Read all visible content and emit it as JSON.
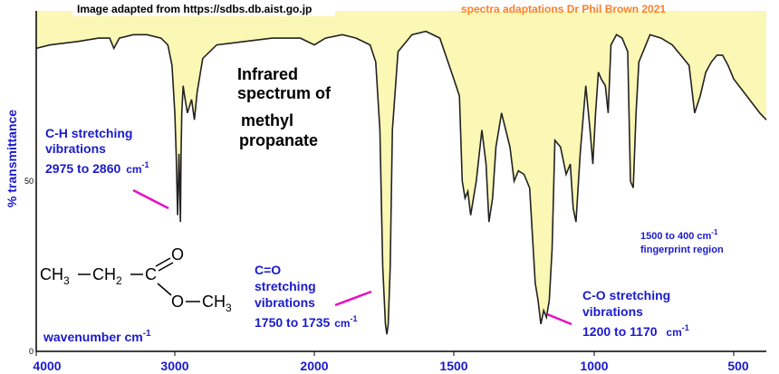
{
  "credits": {
    "source": "Image adapted from https://sdbs.db.aist.go.jp",
    "adaptation": "spectra adaptations Dr Phil Brown 2021"
  },
  "title_lines": [
    "Infrared",
    "spectrum of",
    "methyl",
    "propanate"
  ],
  "molecule": {
    "ch3_left": "CH",
    "ch3_left_sub": "3",
    "ch2": "CH",
    "ch2_sub": "2",
    "c": "C",
    "o_double": "O",
    "o_single": "O",
    "ch3_right": "CH",
    "ch3_right_sub": "3"
  },
  "annotations": {
    "ch": {
      "lines": [
        "C-H stretching",
        "vibrations"
      ],
      "range": "2975 to 2860",
      "unit": "cm",
      "sup": "-1"
    },
    "co_double": {
      "lines": [
        "C=O",
        "stretching",
        "vibrations"
      ],
      "range": "1750 to 1735",
      "unit": "cm",
      "sup": "-1"
    },
    "co_single": {
      "lines": [
        "C-O stretching",
        "vibrations"
      ],
      "range": "1200 to 1170",
      "unit": "cm",
      "sup": "-1"
    },
    "fingerprint": {
      "line1": "1500 to 400 cm",
      "sup": "-1",
      "line2": "fingerprint region"
    }
  },
  "colors": {
    "fill": "#fbf7b4",
    "curve": "#222222",
    "text_blue": "#1a1acc",
    "pointer": "#e60ec0",
    "credit2": "#ff7f24"
  },
  "chart_data": {
    "type": "line",
    "xlabel": "wavenumber  cm",
    "xlabel_sup": "-1",
    "ylabel": "% transmittance",
    "xlim": [
      4000,
      450
    ],
    "ylim": [
      0,
      100
    ],
    "x_ticks": [
      "4000",
      "3000",
      "2000",
      "1500",
      "1000",
      "500"
    ],
    "y_ticks": [
      "50",
      "0"
    ],
    "series": [
      {
        "x": [
          4000,
          3900,
          3700,
          3550,
          3470,
          3440,
          3400,
          3300,
          3200,
          3100,
          3050,
          3020,
          3000,
          2990,
          2980,
          2970,
          2960,
          2955,
          2950,
          2940,
          2930,
          2910,
          2880,
          2860,
          2840,
          2800,
          2700,
          2500,
          2300,
          2100,
          2000,
          1960,
          1900,
          1850,
          1800,
          1780,
          1765,
          1755,
          1745,
          1740,
          1735,
          1728,
          1720,
          1700,
          1650,
          1600,
          1550,
          1500,
          1480,
          1470,
          1460,
          1450,
          1440,
          1420,
          1400,
          1385,
          1375,
          1362,
          1350,
          1330,
          1300,
          1285,
          1270,
          1250,
          1230,
          1210,
          1200,
          1190,
          1180,
          1170,
          1160,
          1150,
          1140,
          1120,
          1100,
          1085,
          1075,
          1065,
          1050,
          1030,
          1015,
          1005,
          995,
          985,
          975,
          960,
          950,
          940,
          920,
          900,
          880,
          870,
          860,
          850,
          840,
          800,
          760,
          720,
          700,
          680,
          660,
          640,
          620,
          600,
          580,
          560,
          540,
          520,
          500,
          480,
          460,
          450
        ],
        "y": [
          89,
          90,
          91,
          92,
          92,
          89,
          92,
          93,
          93,
          92,
          90,
          84,
          70,
          58,
          40,
          58,
          38,
          58,
          70,
          78,
          75,
          70,
          74,
          68,
          76,
          86,
          90,
          91,
          92,
          92,
          90,
          92,
          93,
          92,
          90,
          85,
          65,
          25,
          8,
          5,
          8,
          25,
          65,
          88,
          93,
          94,
          92,
          80,
          75,
          50,
          45,
          47,
          40,
          50,
          65,
          55,
          38,
          45,
          60,
          70,
          60,
          50,
          53,
          52,
          48,
          20,
          15,
          8,
          12,
          10,
          15,
          30,
          62,
          60,
          52,
          55,
          42,
          38,
          58,
          78,
          65,
          55,
          70,
          82,
          80,
          78,
          70,
          90,
          93,
          92,
          88,
          50,
          48,
          70,
          85,
          93,
          92,
          90,
          88,
          86,
          84,
          70,
          75,
          82,
          85,
          87,
          87,
          84,
          80,
          75,
          70,
          68
        ]
      }
    ]
  }
}
